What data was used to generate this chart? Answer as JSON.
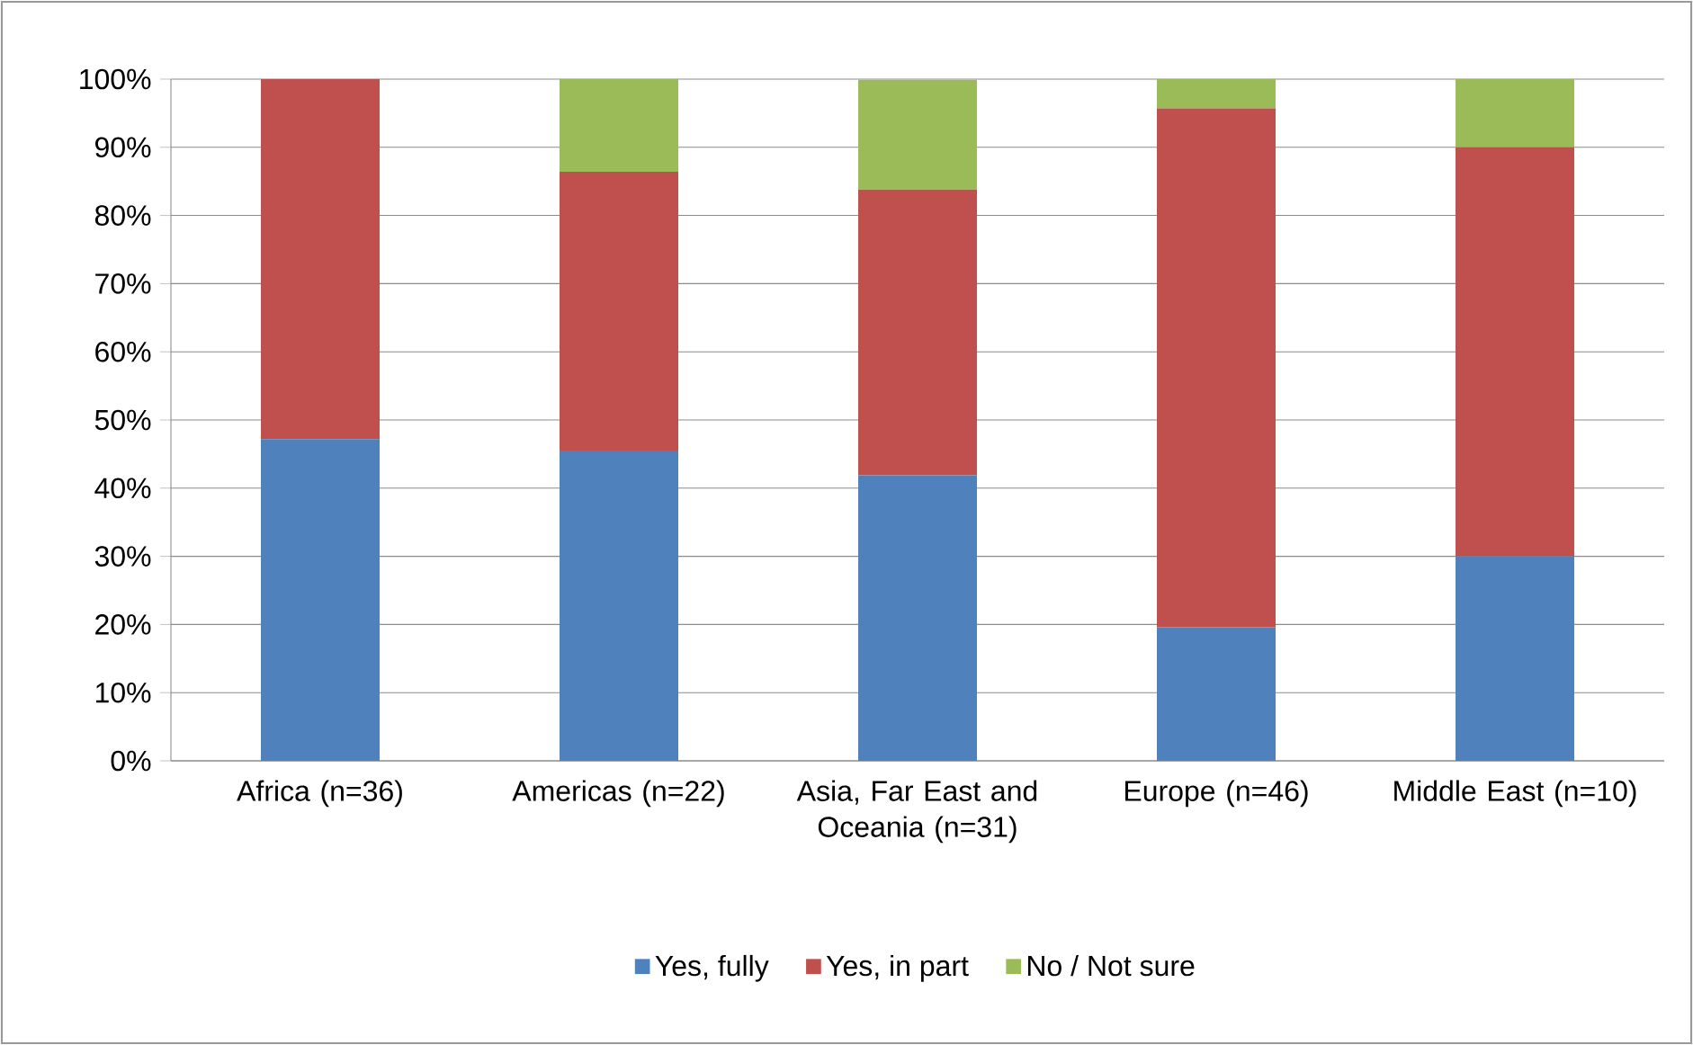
{
  "chart_data": {
    "type": "bar",
    "stacked": true,
    "categories": [
      "Africa (n=36)",
      "Americas (n=22)",
      "Asia, Far East and Oceania (n=31)",
      "Europe (n=46)",
      "Middle East (n=10)"
    ],
    "series": [
      {
        "name": "Yes, fully",
        "color": "#4f81bd",
        "values": [
          47.2,
          45.5,
          41.9,
          19.6,
          30.0
        ]
      },
      {
        "name": "Yes, in part",
        "color": "#c0504d",
        "values": [
          52.8,
          40.9,
          41.9,
          76.1,
          60.0
        ]
      },
      {
        "name": "No / Not sure",
        "color": "#9bbb59",
        "values": [
          0,
          13.6,
          16.1,
          4.3,
          10.0
        ]
      }
    ],
    "ylim": [
      0,
      100
    ],
    "yticks": [
      {
        "value": 0,
        "label": "0%"
      },
      {
        "value": 10,
        "label": "10%"
      },
      {
        "value": 20,
        "label": "20%"
      },
      {
        "value": 30,
        "label": "30%"
      },
      {
        "value": 40,
        "label": "40%"
      },
      {
        "value": 50,
        "label": "50%"
      },
      {
        "value": 60,
        "label": "60%"
      },
      {
        "value": 70,
        "label": "70%"
      },
      {
        "value": 80,
        "label": "80%"
      },
      {
        "value": 90,
        "label": "90%"
      },
      {
        "value": 100,
        "label": "100%"
      }
    ],
    "grid": "y",
    "legend": "bottom"
  }
}
